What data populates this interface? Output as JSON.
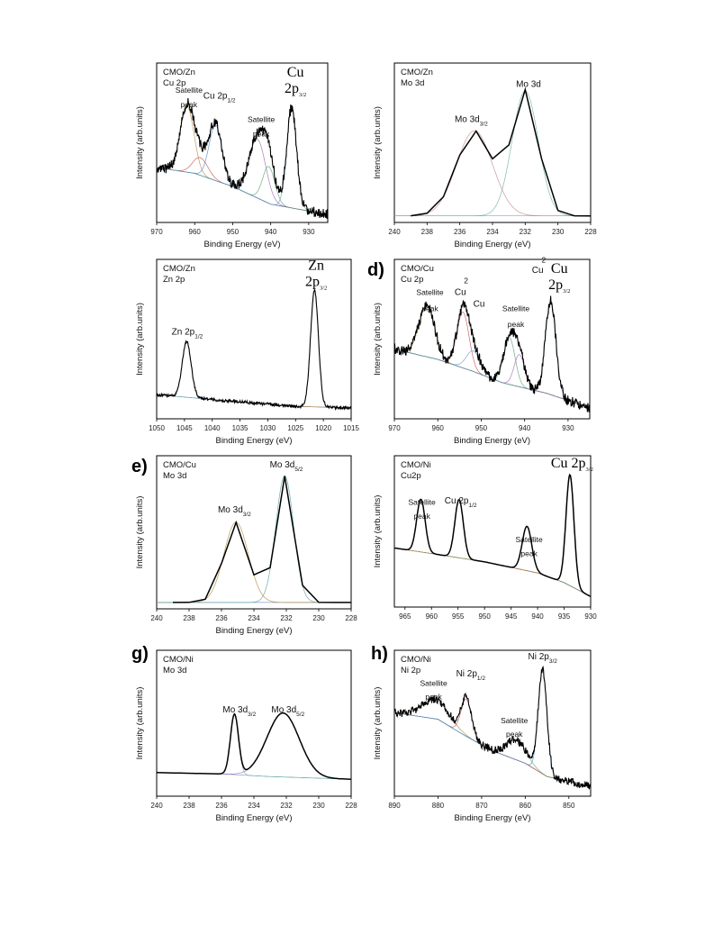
{
  "chart_data": [
    {
      "id": "a",
      "type": "line",
      "letter": "",
      "title": [
        "CMO/Zn",
        "Cu 2p"
      ],
      "xlabel": "Binding Energy (eV)",
      "ylabel": "Intensity (arb.units)",
      "xlim": [
        970,
        925
      ],
      "xticks": [
        970,
        960,
        950,
        940,
        930
      ],
      "annotations": [
        {
          "text": "Satellite",
          "x": 961.5,
          "y": 0.86,
          "cls": "annS"
        },
        {
          "text": "peak",
          "x": 961.5,
          "y": 0.76,
          "cls": "annS"
        },
        {
          "text": "Cu 2p",
          "sub": "1/2",
          "x": 953.5,
          "y": 0.82
        },
        {
          "text": "Satellite",
          "x": 942.5,
          "y": 0.66,
          "cls": "annS"
        },
        {
          "text": "peak",
          "x": 942.5,
          "y": 0.56,
          "cls": "annS"
        },
        {
          "text": "Cu",
          "x": 933.5,
          "y": 0.97,
          "cls": "serif"
        },
        {
          "text": "2p",
          "sub": "3/2",
          "x": 933.5,
          "y": 0.86,
          "cls": "serif"
        }
      ],
      "baseline": [
        [
          970,
          0.35
        ],
        [
          960,
          0.31
        ],
        [
          950,
          0.22
        ],
        [
          940,
          0.1
        ],
        [
          925,
          0.03
        ]
      ],
      "peaks": [
        {
          "center": 962,
          "height": 0.45,
          "width": 1.8,
          "color": "#b08a3a"
        },
        {
          "center": 958.5,
          "height": 0.12,
          "width": 2.0,
          "color": "#d04a4a"
        },
        {
          "center": 954.5,
          "height": 0.38,
          "width": 1.7,
          "color": "#4a8ad0"
        },
        {
          "center": 943.5,
          "height": 0.4,
          "width": 2.2,
          "color": "#9a6ab0"
        },
        {
          "center": 940.5,
          "height": 0.25,
          "width": 1.6,
          "color": "#5aa06a"
        },
        {
          "center": 934.5,
          "height": 0.68,
          "width": 1.3,
          "color": "#5a9ad0"
        }
      ],
      "noise": 0.035,
      "series": [
        {
          "name": "",
          "values": []
        }
      ]
    },
    {
      "id": "b",
      "type": "line",
      "letter": "",
      "title": [
        "CMO/Zn",
        "Mo 3d"
      ],
      "xlabel": "Binding Energy (eV)",
      "ylabel": "Intensity (arb.units)",
      "xlim": [
        240,
        228
      ],
      "xticks": [
        240,
        238,
        236,
        234,
        232,
        230,
        228
      ],
      "annotations": [
        {
          "text": "Mo 3d",
          "sub": "3/2",
          "x": 235.3,
          "y": 0.66
        },
        {
          "text": "Mo 3d",
          "x": 231.8,
          "y": 0.9
        }
      ],
      "baseline": [
        [
          240,
          0.02
        ],
        [
          228,
          0.02
        ]
      ],
      "peaks": [
        {
          "center": 235.1,
          "height": 0.58,
          "width": 1.1,
          "color": "#c08a8a"
        },
        {
          "center": 232.0,
          "height": 0.85,
          "width": 0.8,
          "color": "#6ab0a0"
        }
      ],
      "noise": 0,
      "sampled": [
        239,
        238,
        237,
        236,
        235,
        234,
        233,
        232,
        231,
        230,
        229,
        228
      ],
      "series": [
        {
          "name": "",
          "values": []
        }
      ]
    },
    {
      "id": "c",
      "type": "line",
      "letter": "",
      "title": [
        "CMO/Zn",
        "Zn 2p"
      ],
      "xlabel": "Binding Energy (eV)",
      "ylabel": "Intensity (arb.units)",
      "xlim": [
        1050,
        1015
      ],
      "xticks": [
        1050,
        1045,
        1040,
        1035,
        1030,
        1025,
        1020,
        1015
      ],
      "annotations": [
        {
          "text": "Zn 2p",
          "sub": "1/2",
          "x": 1044.5,
          "y": 0.55
        },
        {
          "text": "Zn",
          "x": 1021.3,
          "y": 0.99,
          "cls": "serif"
        },
        {
          "text": "2p",
          "sub": "3/2",
          "x": 1021.3,
          "y": 0.88,
          "cls": "serif"
        }
      ],
      "baseline": [
        [
          1050,
          0.14
        ],
        [
          1044,
          0.12
        ],
        [
          1038,
          0.1
        ],
        [
          1025,
          0.06
        ],
        [
          1015,
          0.05
        ]
      ],
      "peaks": [
        {
          "center": 1044.6,
          "height": 0.38,
          "width": 0.8,
          "color": "#b07a3a"
        },
        {
          "center": 1021.6,
          "height": 0.8,
          "width": 0.7,
          "color": "#6aa0a0"
        }
      ],
      "noise": 0.01,
      "series": [
        {
          "name": "",
          "values": []
        }
      ]
    },
    {
      "id": "d",
      "type": "line",
      "letter": "d)",
      "title": [
        "CMO/Cu",
        "Cu 2p"
      ],
      "xlabel": "Binding Energy (eV)",
      "ylabel": "Intensity (arb.units)",
      "xlim": [
        970,
        925
      ],
      "xticks": [
        970,
        960,
        950,
        940,
        930
      ],
      "annotations": [
        {
          "text": "Satellite",
          "x": 961.8,
          "y": 0.82,
          "cls": "annS"
        },
        {
          "text": "peak",
          "x": 961.8,
          "y": 0.71,
          "cls": "annS"
        },
        {
          "text": "Cu",
          "x": 954.8,
          "y": 0.82
        },
        {
          "text": "2",
          "x": 953.5,
          "y": 0.9,
          "cls": "annS"
        },
        {
          "text": "Cu",
          "x": 950.5,
          "y": 0.74
        },
        {
          "text": "Satellite",
          "x": 942.0,
          "y": 0.71,
          "cls": "annS"
        },
        {
          "text": "peak",
          "x": 942.0,
          "y": 0.6,
          "cls": "annS"
        },
        {
          "text": "Cu",
          "x": 937.0,
          "y": 0.97
        },
        {
          "text": "2",
          "x": 935.6,
          "y": 1.04,
          "cls": "annS"
        },
        {
          "text": "Cu",
          "x": 932.0,
          "y": 0.97,
          "cls": "serif"
        },
        {
          "text": "2p",
          "sub": "3/2",
          "x": 932.0,
          "y": 0.86,
          "cls": "serif"
        }
      ],
      "baseline": [
        [
          970,
          0.45
        ],
        [
          960,
          0.38
        ],
        [
          952,
          0.3
        ],
        [
          945,
          0.22
        ],
        [
          935,
          0.15
        ],
        [
          925,
          0.05
        ]
      ],
      "peaks": [
        {
          "center": 962.5,
          "height": 0.35,
          "width": 1.8,
          "color": "#b08a3a"
        },
        {
          "center": 954.2,
          "height": 0.38,
          "width": 1.4,
          "color": "#c05050"
        },
        {
          "center": 951.8,
          "height": 0.14,
          "width": 1.6,
          "color": "#6a9ad0"
        },
        {
          "center": 943.5,
          "height": 0.32,
          "width": 1.3,
          "color": "#5aa06a"
        },
        {
          "center": 941.2,
          "height": 0.22,
          "width": 1.2,
          "color": "#9a6ab0"
        },
        {
          "center": 934.0,
          "height": 0.64,
          "width": 1.2,
          "color": "#5aa0a0"
        }
      ],
      "noise": 0.035,
      "series": [
        {
          "name": "",
          "values": []
        }
      ]
    },
    {
      "id": "e",
      "type": "line",
      "letter": "e)",
      "title": [
        "CMO/Cu",
        "Mo 3d"
      ],
      "xlabel": "Binding Energy (eV)",
      "ylabel": "Intensity (arb.units)",
      "xlim": [
        240,
        228
      ],
      "xticks": [
        240,
        238,
        236,
        234,
        232,
        230,
        228
      ],
      "annotations": [
        {
          "text": "Mo 3d",
          "sub": "3/2",
          "x": 235.2,
          "y": 0.66
        },
        {
          "text": "Mo 3d",
          "sub": "5/2",
          "x": 232.0,
          "y": 0.98
        }
      ],
      "baseline": [
        [
          240,
          0.02
        ],
        [
          228,
          0.02
        ]
      ],
      "peaks": [
        {
          "center": 235.1,
          "height": 0.57,
          "width": 0.75,
          "color": "#b08a3a"
        },
        {
          "center": 232.1,
          "height": 0.9,
          "width": 0.55,
          "color": "#5aa0a0"
        }
      ],
      "noise": 0,
      "sampled": [
        239,
        238,
        237,
        236,
        235.1,
        234,
        233,
        232.1,
        231,
        230,
        229,
        228
      ],
      "series": [
        {
          "name": "",
          "values": []
        }
      ]
    },
    {
      "id": "f",
      "type": "line",
      "letter": "",
      "title": [
        "CMO/Ni",
        "Cu2p"
      ],
      "xlabel": "",
      "ylabel": "Intensity (arb.units)",
      "xlim": [
        967,
        930
      ],
      "xticks": [
        965,
        960,
        955,
        950,
        945,
        940,
        935,
        930
      ],
      "annotations": [
        {
          "text": "Satellite",
          "x": 961.8,
          "y": 0.71,
          "cls": "annS"
        },
        {
          "text": "peak",
          "x": 961.8,
          "y": 0.61,
          "cls": "annS"
        },
        {
          "text": "Cu 2p",
          "sub": "1/2",
          "x": 954.5,
          "y": 0.72
        },
        {
          "text": "Satellite",
          "x": 941.6,
          "y": 0.44,
          "cls": "annS"
        },
        {
          "text": "peak",
          "x": 941.6,
          "y": 0.34,
          "cls": "annS"
        },
        {
          "text": "Cu 2p",
          "sub": "3/2",
          "x": 933.5,
          "y": 0.98,
          "cls": "serif"
        }
      ],
      "baseline": [
        [
          967,
          0.4
        ],
        [
          960,
          0.36
        ],
        [
          950,
          0.3
        ],
        [
          945,
          0.26
        ],
        [
          940,
          0.22
        ],
        [
          935,
          0.15
        ],
        [
          930,
          0.05
        ]
      ],
      "peaks": [
        {
          "center": 962.0,
          "height": 0.38,
          "width": 0.8,
          "color": "#4a8ad0"
        },
        {
          "center": 954.8,
          "height": 0.42,
          "width": 0.8,
          "color": "#c05050"
        },
        {
          "center": 942.0,
          "height": 0.32,
          "width": 0.9,
          "color": "#5aa06a"
        },
        {
          "center": 933.9,
          "height": 0.8,
          "width": 0.75,
          "color": "#b08a3a"
        }
      ],
      "noise": 0,
      "series": [
        {
          "name": "",
          "values": []
        }
      ]
    },
    {
      "id": "g",
      "type": "line",
      "letter": "g)",
      "title": [
        "CMO/Ni",
        "Mo 3d"
      ],
      "xlabel": "Binding Energy (eV)",
      "ylabel": "Intensity (arb.units)",
      "xlim": [
        240,
        228
      ],
      "xticks": [
        240,
        238,
        236,
        234,
        232,
        230,
        228
      ],
      "annotations": [
        {
          "text": "Mo 3d",
          "sub": "3/2",
          "x": 234.9,
          "y": 0.6
        },
        {
          "text": "Mo 3d",
          "sub": "5/2",
          "x": 231.9,
          "y": 0.6
        }
      ],
      "baseline": [
        [
          240,
          0.15
        ],
        [
          236,
          0.14
        ],
        [
          233,
          0.12
        ],
        [
          228,
          0.1
        ]
      ],
      "peaks": [
        {
          "center": 235.2,
          "height": 0.45,
          "width": 0.25,
          "color": "#6ab0a0"
        },
        {
          "center": 232.2,
          "height": 0.48,
          "width": 1.0,
          "color": "#9a6ab0"
        }
      ],
      "noise": 0,
      "series": [
        {
          "name": "",
          "values": []
        }
      ]
    },
    {
      "id": "h",
      "type": "line",
      "letter": "h)",
      "title": [
        "CMO/Ni",
        "Ni 2p"
      ],
      "xlabel": "Binding Energy (eV)",
      "ylabel": "Intensity (arb.units)",
      "xlim": [
        890,
        845
      ],
      "xticks": [
        890,
        880,
        870,
        860,
        850
      ],
      "annotations": [
        {
          "text": "Satellite",
          "x": 881.0,
          "y": 0.8,
          "cls": "annS"
        },
        {
          "text": "peak",
          "x": 881.0,
          "y": 0.7,
          "cls": "annS"
        },
        {
          "text": "Ni 2p",
          "sub": "1/2",
          "x": 872.5,
          "y": 0.87
        },
        {
          "text": "Satellite",
          "x": 862.5,
          "y": 0.52,
          "cls": "annS"
        },
        {
          "text": "peak",
          "x": 862.5,
          "y": 0.42,
          "cls": "annS"
        },
        {
          "text": "Ni 2p",
          "sub": "3/2",
          "x": 856.0,
          "y": 1.0
        }
      ],
      "baseline": [
        [
          890,
          0.6
        ],
        [
          880,
          0.55
        ],
        [
          875,
          0.45
        ],
        [
          868,
          0.32
        ],
        [
          860,
          0.22
        ],
        [
          855,
          0.12
        ],
        [
          845,
          0.05
        ]
      ],
      "peaks": [
        {
          "center": 880.5,
          "height": 0.15,
          "width": 3.0,
          "color": "#b08a3a"
        },
        {
          "center": 873.5,
          "height": 0.28,
          "width": 1.2,
          "color": "#c05050"
        },
        {
          "center": 862.0,
          "height": 0.15,
          "width": 2.2,
          "color": "#5aa06a"
        },
        {
          "center": 856.0,
          "height": 0.78,
          "width": 1.0,
          "color": "#4a8ad0"
        }
      ],
      "noise": 0.03,
      "series": [
        {
          "name": "",
          "values": []
        }
      ]
    }
  ]
}
